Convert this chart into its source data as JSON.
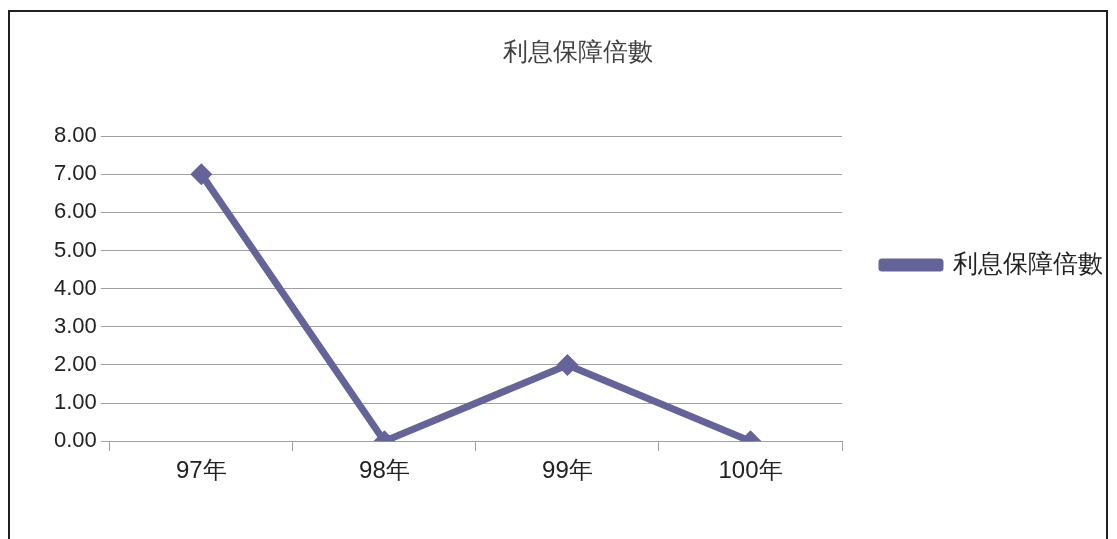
{
  "chart_data": {
    "type": "line",
    "title": "利息保障倍數",
    "categories": [
      "97年",
      "98年",
      "99年",
      "100年"
    ],
    "series": [
      {
        "name": "利息保障倍數",
        "color": "#64649a",
        "values": [
          7,
          0,
          2,
          0
        ]
      }
    ],
    "ylim": [
      0,
      8
    ],
    "yticks": [
      {
        "value": 0,
        "label": "0.00"
      },
      {
        "value": 1,
        "label": "1.00"
      },
      {
        "value": 2,
        "label": "2.00"
      },
      {
        "value": 3,
        "label": "3.00"
      },
      {
        "value": 4,
        "label": "4.00"
      },
      {
        "value": 5,
        "label": "5.00"
      },
      {
        "value": 6,
        "label": "6.00"
      },
      {
        "value": 7,
        "label": "7.00"
      },
      {
        "value": 8,
        "label": "8.00"
      }
    ],
    "grid": "y",
    "legend": "right",
    "marker": "diamond",
    "line_style": "solid"
  }
}
